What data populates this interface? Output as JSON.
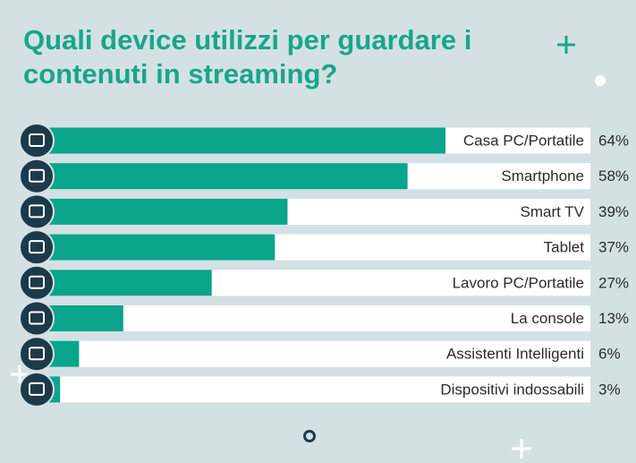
{
  "chart_data": {
    "type": "bar",
    "orientation": "horizontal",
    "title": "Quali device utilizzi per guardare i contenuti in streaming?",
    "categories": [
      "Casa PC/Portatile",
      "Smartphone",
      "Smart TV",
      "Tablet",
      "Lavoro PC/Portatile",
      "La console",
      "Assistenti Intelligenti",
      "Dispositivi indossabili"
    ],
    "values": [
      64,
      58,
      39,
      37,
      27,
      13,
      6,
      3
    ],
    "value_labels": [
      "64%",
      "58%",
      "39%",
      "37%",
      "27%",
      "13%",
      "6%",
      "3%"
    ],
    "color": "#0aa58a"
  }
}
